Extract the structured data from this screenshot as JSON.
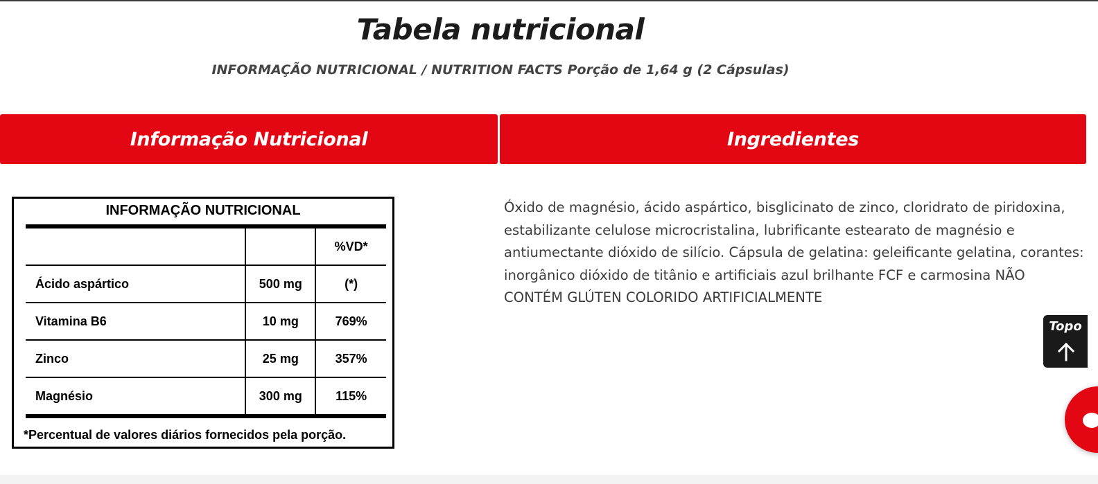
{
  "page": {
    "title": "Tabela nutricional",
    "subtitle": "INFORMAÇÃO NUTRICIONAL / NUTRITION FACTS Porção de 1,64 g (2 Cápsulas)"
  },
  "tabs": [
    {
      "label": "Informação Nutricional"
    },
    {
      "label": "Ingredientes"
    }
  ],
  "nutrition_table": {
    "title": "INFORMAÇÃO NUTRICIONAL",
    "header": {
      "name": "",
      "amount": "",
      "vd": "%VD*"
    },
    "rows": [
      {
        "name": "Ácido aspártico",
        "amount": "500 mg",
        "vd": "(*)"
      },
      {
        "name": "Vitamina B6",
        "amount": "10 mg",
        "vd": "769%"
      },
      {
        "name": "Zinco",
        "amount": "25 mg",
        "vd": "357%"
      },
      {
        "name": "Magnésio",
        "amount": "300 mg",
        "vd": "115%"
      }
    ],
    "footnote": "*Percentual de valores diários fornecidos pela porção."
  },
  "ingredients": {
    "text": "Óxido de magnésio, ácido aspártico, bisglicinato de zinco, cloridrato de piridoxina, estabilizante celulose microcristalina, lubrificante estearato de magnésio e antiumectante dióxido de silício. Cápsula de gelatina: geleificante gelatina, corantes: inorgânico dióxido de titânio e artificiais azul brilhante FCF e carmosina NÃO CONTÉM GLÚTEN COLORIDO ARTIFICIALMENTE"
  },
  "back_to_top": {
    "label": "Topo",
    "icon": "arrow-up-icon"
  },
  "chat": {
    "icon": "chat-bubble-icon"
  },
  "colors": {
    "accent": "#e30613",
    "dark": "#1a1a1a"
  }
}
